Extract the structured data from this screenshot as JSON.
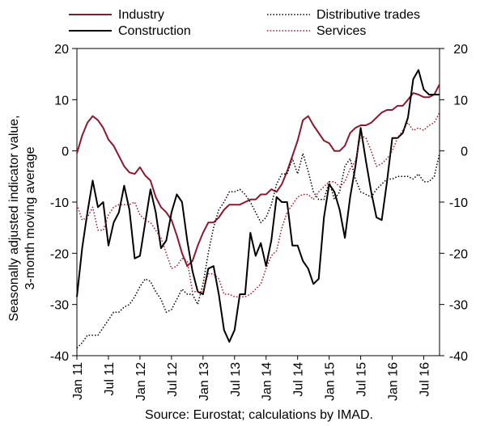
{
  "chart_data": {
    "type": "line",
    "ylabel_lines": [
      "Seasonally adjusted indicator value,",
      "3-month moving average"
    ],
    "source": "Source: Eurostat; calculations by IMAD.",
    "ylim": [
      -40,
      20
    ],
    "yticks": [
      -40,
      -30,
      -20,
      -10,
      0,
      10,
      20
    ],
    "xtick_labels": [
      "Jan 11",
      "Jul 11",
      "Jan 12",
      "Jul 12",
      "Jan 13",
      "Jul 13",
      "Jan 14",
      "Jul 14",
      "Jan 15",
      "Jul 15",
      "Jan 16",
      "Jul 16"
    ],
    "x_start": "2011-01",
    "x_end": "2016-08",
    "legend_position": "top",
    "grid": false,
    "series": [
      {
        "name": "Industry",
        "color": "#8B1A2E",
        "style": "solid",
        "values": [
          -0.5,
          3.0,
          5.5,
          6.8,
          6.0,
          4.5,
          2.2,
          1.0,
          -1.0,
          -3.0,
          -4.2,
          -4.5,
          -3.2,
          -4.8,
          -5.8,
          -9.0,
          -11.0,
          -12.0,
          -13.5,
          -16.5,
          -20.0,
          -22.5,
          -21.5,
          -18.5,
          -16.0,
          -14.0,
          -14.0,
          -13.0,
          -11.5,
          -10.5,
          -10.5,
          -10.5,
          -10.0,
          -9.5,
          -9.5,
          -8.5,
          -8.5,
          -7.5,
          -8.0,
          -6.5,
          -4.0,
          -1.0,
          2.0,
          6.0,
          6.8,
          5.0,
          3.5,
          2.0,
          1.5,
          0.0,
          0.0,
          1.0,
          3.5,
          4.5,
          5.0,
          5.0,
          5.5,
          6.5,
          7.5,
          8.0,
          8.0,
          8.8,
          8.8,
          10.0,
          11.3,
          11.0,
          10.5,
          10.5,
          11.0,
          13.0
        ]
      },
      {
        "name": "Construction",
        "color": "#000000",
        "style": "solid",
        "values": [
          -28.5,
          -19.0,
          -12.0,
          -5.8,
          -11.0,
          -10.0,
          -18.5,
          -14.0,
          -12.0,
          -6.8,
          -11.5,
          -21.0,
          -20.5,
          -14.0,
          -7.5,
          -12.0,
          -19.0,
          -17.5,
          -12.0,
          -8.5,
          -10.0,
          -17.5,
          -23.5,
          -27.5,
          -28.0,
          -23.0,
          -22.5,
          -28.0,
          -35.0,
          -37.3,
          -35.0,
          -28.0,
          -28.0,
          -16.0,
          -20.5,
          -18.0,
          -22.5,
          -17.5,
          -9.0,
          -10.0,
          -10.0,
          -18.5,
          -18.5,
          -21.5,
          -23.0,
          -26.0,
          -25.0,
          -13.0,
          -6.5,
          -8.0,
          -11.5,
          -17.0,
          -9.0,
          -3.0,
          4.5,
          -2.0,
          -8.0,
          -13.0,
          -13.5,
          -6.0,
          2.5,
          2.5,
          3.5,
          6.5,
          14.0,
          15.8,
          12.0,
          11.0,
          11.0,
          11.0
        ]
      },
      {
        "name": "Distributive trades",
        "color": "#000000",
        "style": "dotted",
        "values": [
          -38.5,
          -37.5,
          -36.0,
          -36.0,
          -36.0,
          -34.5,
          -33.0,
          -31.5,
          -31.5,
          -30.5,
          -30.0,
          -28.5,
          -26.5,
          -25.0,
          -25.5,
          -27.5,
          -29.0,
          -31.5,
          -31.0,
          -29.0,
          -27.0,
          -28.0,
          -28.0,
          -30.0,
          -26.0,
          -20.0,
          -15.0,
          -11.5,
          -10.0,
          -8.0,
          -8.0,
          -7.5,
          -8.5,
          -10.0,
          -12.0,
          -14.0,
          -13.0,
          -10.5,
          -6.5,
          -4.5,
          -4.5,
          -1.5,
          -4.5,
          -0.5,
          -4.0,
          -8.0,
          -9.5,
          -9.5,
          -6.0,
          -9.5,
          -8.0,
          -3.0,
          -1.5,
          -5.5,
          -8.0,
          -8.5,
          -9.0,
          -7.5,
          -6.5,
          -5.5,
          -5.5,
          -5.0,
          -5.0,
          -5.0,
          -5.5,
          -4.5,
          -6.0,
          -6.0,
          -5.0,
          -0.5
        ]
      },
      {
        "name": "Services",
        "color": "#A01828",
        "style": "dotted",
        "values": [
          -10.5,
          -13.5,
          -13.0,
          -11.0,
          -15.5,
          -15.5,
          -12.5,
          -11.0,
          -10.5,
          -10.5,
          -10.5,
          -10.0,
          -12.5,
          -13.5,
          -14.0,
          -15.5,
          -17.0,
          -20.0,
          -23.0,
          -22.5,
          -21.0,
          -21.5,
          -27.5,
          -27.5,
          -27.5,
          -24.0,
          -24.0,
          -25.0,
          -28.0,
          -28.0,
          -28.5,
          -28.5,
          -28.5,
          -28.0,
          -27.0,
          -26.0,
          -23.0,
          -20.5,
          -19.5,
          -15.0,
          -12.0,
          -10.5,
          -9.0,
          -8.5,
          -8.5,
          -9.5,
          -8.0,
          -7.0,
          -6.0,
          -6.0,
          -7.0,
          -6.0,
          -3.5,
          -2.0,
          3.0,
          2.5,
          0.0,
          -3.0,
          -2.5,
          -1.5,
          0.0,
          2.5,
          4.0,
          5.5,
          4.0,
          4.5,
          4.0,
          5.0,
          5.5,
          7.5
        ]
      }
    ]
  }
}
